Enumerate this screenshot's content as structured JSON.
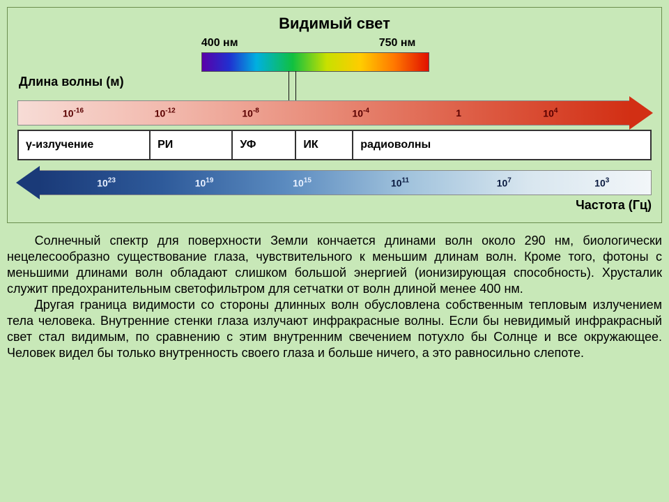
{
  "page": {
    "background_color": "#c8e8b8",
    "diagram_border_color": "#6b8e4e"
  },
  "title": "Видимый свет",
  "visible_spectrum": {
    "left_nm": "400 нм",
    "right_nm": "750 нм",
    "left_pct": 29,
    "right_pct": 57,
    "gradient": "linear-gradient(to right, #5a00a8 0%, #2030d0 12%, #00b0e0 24%, #10c040 40%, #c8e000 55%, #ffcc00 70%, #ff7700 85%, #e01000 100%)"
  },
  "wavelength": {
    "label": "Длина волны (м)",
    "gradient": "linear-gradient(to right, #f7dcd6 0%, #f2b8ac 25%, #e88b78 50%, #dd5c44 75%, #d22f14 100%)",
    "arrow_head_color": "#d22f14",
    "ticks": [
      {
        "pos_pct": 9,
        "base": "10",
        "exp": "-16"
      },
      {
        "pos_pct": 24,
        "base": "10",
        "exp": "-12"
      },
      {
        "pos_pct": 38,
        "base": "10",
        "exp": "-8"
      },
      {
        "pos_pct": 56,
        "base": "10",
        "exp": "-4"
      },
      {
        "pos_pct": 72,
        "base": "1",
        "exp": ""
      },
      {
        "pos_pct": 87,
        "base": "10",
        "exp": "4"
      }
    ],
    "tick_color": "#5a0000"
  },
  "bands": [
    {
      "label": "γ-излучение",
      "flex": 21
    },
    {
      "label": "РИ",
      "flex": 13
    },
    {
      "label": "УФ",
      "flex": 10
    },
    {
      "label": "ИК",
      "flex": 9
    },
    {
      "label": "радиоволны",
      "flex": 47
    }
  ],
  "frequency": {
    "label": "Частота (Гц)",
    "gradient": "linear-gradient(to right, #1a3a78 0%, #2e5a9a 20%, #5a8abf 40%, #a0c2dc 60%, #d8e6ef 80%, #f2f6f9 100%)",
    "arrow_head_color": "#1a3a78",
    "ticks": [
      {
        "pos_pct": 11,
        "base": "10",
        "exp": "23"
      },
      {
        "pos_pct": 27,
        "base": "10",
        "exp": "19"
      },
      {
        "pos_pct": 43,
        "base": "10",
        "exp": "15"
      },
      {
        "pos_pct": 59,
        "base": "10",
        "exp": "11"
      },
      {
        "pos_pct": 76,
        "base": "10",
        "exp": "7"
      },
      {
        "pos_pct": 92,
        "base": "10",
        "exp": "3"
      }
    ],
    "tick_color_dark": "#e8f0ff",
    "tick_color_light": "#0a1a40"
  },
  "paragraphs": [
    "Солнечный спектр для поверхности Земли кончается длинами волн около 290 нм, биологически нецелесообразно существование глаза, чувствительного к меньшим длинам волн. Кроме того, фотоны с меньшими длинами волн обладают слишком большой энергией (ионизирующая способность). Хрусталик служит предохранительным светофильтром для сетчатки от волн  длиной менее 400 нм.",
    "Другая граница видимости со стороны длинных волн обусловлена собственным тепловым излучением тела человека. Внутренние стенки глаза излучают инфракрасные волны. Если бы невидимый инфракрасный свет стал видимым, по сравнению с этим внутренним свечением потухло бы Солнце и все окружающее. Человек видел бы только внутренность своего глаза и больше ничего, а это равносильно слепоте."
  ]
}
